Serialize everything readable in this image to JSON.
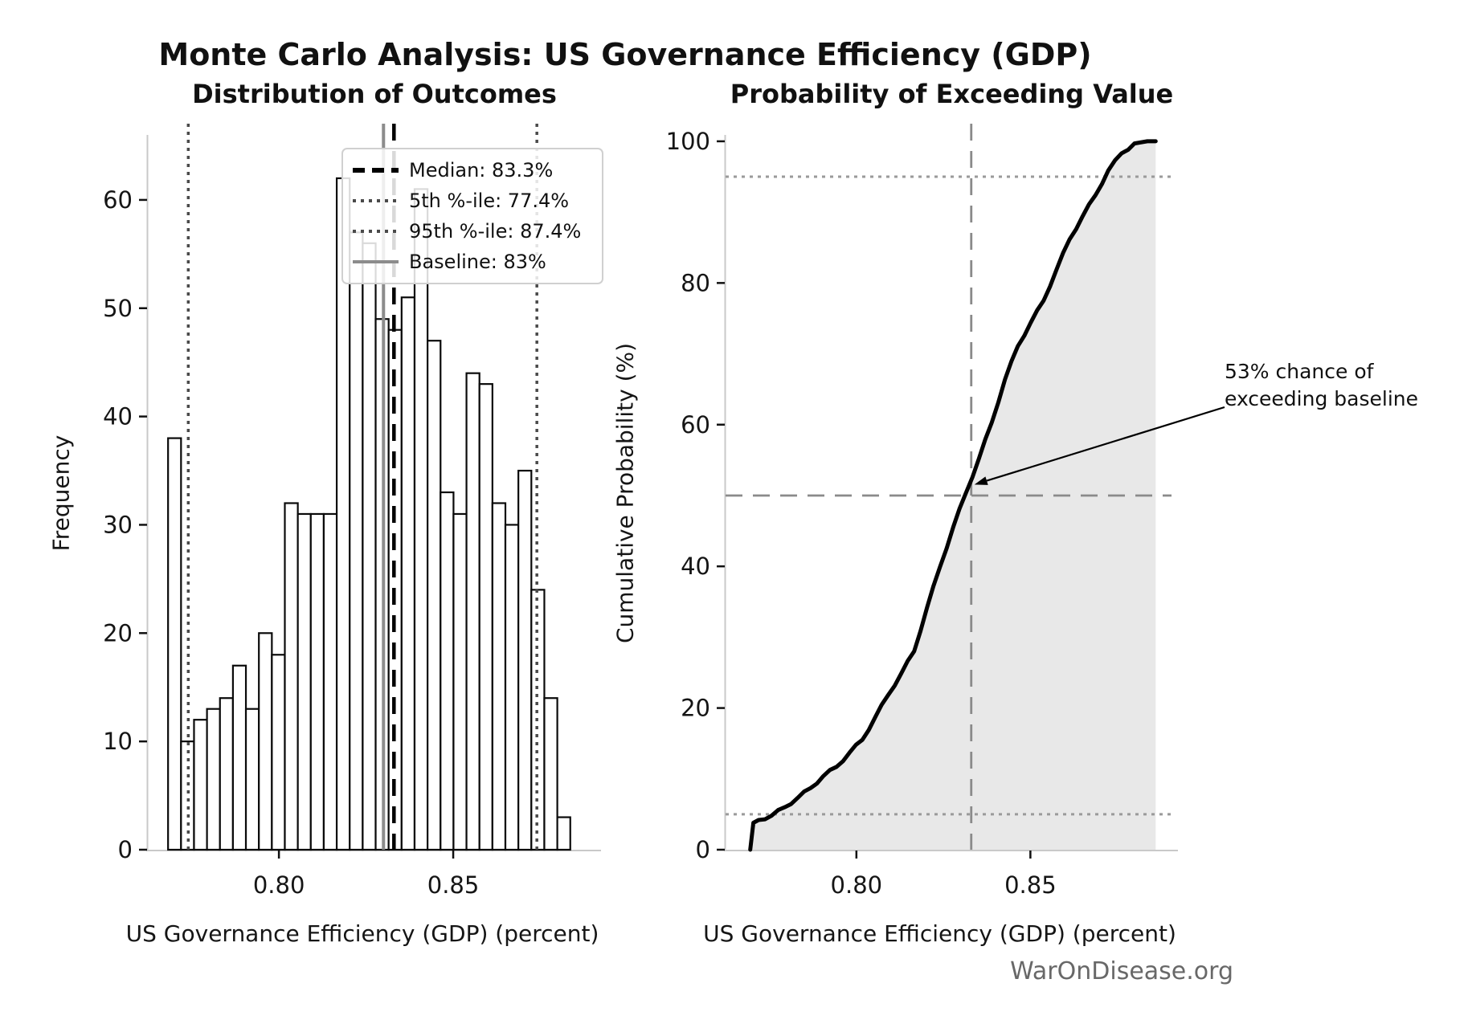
{
  "title": "Monte Carlo Analysis: US Governance Efficiency (GDP)",
  "watermark": "WarOnDisease.org",
  "chart_data": [
    {
      "type": "bar",
      "title": "Distribution of Outcomes",
      "xlabel": "US Governance Efficiency (GDP) (percent)",
      "ylabel": "Frequency",
      "bin_start": 0.7682,
      "bin_width": 0.003722,
      "values": [
        38,
        10,
        12,
        13,
        14,
        17,
        13,
        20,
        18,
        32,
        31,
        31,
        31,
        62,
        57,
        56,
        49,
        48,
        51,
        61,
        47,
        33,
        31,
        44,
        43,
        32,
        30,
        35,
        24,
        14,
        3
      ],
      "total_samples": 1000,
      "xlim": [
        0.7624,
        0.8924
      ],
      "ylim": [
        0,
        66
      ],
      "xticks": [
        0.8,
        0.85
      ],
      "xtick_labels": [
        "0.80",
        "0.85"
      ],
      "yticks": [
        0,
        10,
        20,
        30,
        40,
        50,
        60
      ],
      "ytick_labels": [
        "0",
        "10",
        "20",
        "30",
        "40",
        "50",
        "60"
      ],
      "bar_fill": "#ffffff",
      "bar_edge": "#0a0a0a",
      "vlines": [
        {
          "id": "median",
          "label": "Median: 83.3%",
          "x": 0.833,
          "style": "dashed",
          "color": "#000000",
          "width": 4.5
        },
        {
          "id": "percentile-5",
          "label": "5th %-ile: 77.4%",
          "x": 0.774,
          "style": "dotted",
          "color": "#4a4a4a",
          "width": 3.5
        },
        {
          "id": "percentile-95",
          "label": "95th %-ile: 87.4%",
          "x": 0.874,
          "style": "dotted",
          "color": "#4a4a4a",
          "width": 3.5
        },
        {
          "id": "baseline",
          "label": "Baseline: 83%",
          "x": 0.83,
          "style": "solid",
          "color": "#8c8c8c",
          "width": 4
        }
      ],
      "legend_position": "upper right",
      "grid": false
    },
    {
      "type": "line",
      "title": "Probability of Exceeding Value",
      "xlabel": "US Governance Efficiency (GDP) (percent)",
      "ylabel": "Cumulative Probability (%)",
      "xlim": [
        0.7624,
        0.8924
      ],
      "ylim": [
        0,
        100
      ],
      "xticks": [
        0.8,
        0.85
      ],
      "xtick_labels": [
        "0.80",
        "0.85"
      ],
      "yticks": [
        0,
        20,
        40,
        60,
        80,
        100
      ],
      "ytick_labels": [
        "0",
        "20",
        "40",
        "60",
        "80",
        "100"
      ],
      "line_color": "#000000",
      "fill_color": "#e8e8e8",
      "x": [
        0.7695,
        0.7704,
        0.7719,
        0.7756,
        0.7794,
        0.7831,
        0.7868,
        0.7905,
        0.7943,
        0.798,
        0.8017,
        0.8054,
        0.8091,
        0.8129,
        0.8166,
        0.8203,
        0.824,
        0.8278,
        0.8315,
        0.8352,
        0.8389,
        0.8427,
        0.8464,
        0.8501,
        0.8538,
        0.8575,
        0.8613,
        0.865,
        0.8687,
        0.8724,
        0.8762,
        0.8799,
        0.8836,
        0.886
      ],
      "y": [
        0,
        3.8,
        4.2,
        4.8,
        6.0,
        7.3,
        8.7,
        10.4,
        11.7,
        13.7,
        15.5,
        18.7,
        21.8,
        24.9,
        28.0,
        34.2,
        39.9,
        45.5,
        50.4,
        55.2,
        60.3,
        66.4,
        71.1,
        74.4,
        77.5,
        81.9,
        86.2,
        89.4,
        92.4,
        95.9,
        98.3,
        99.7,
        100.0,
        100.0
      ],
      "hlines": [
        {
          "id": "p95-line",
          "y": 95,
          "style": "dotted",
          "color": "#9a9a9a",
          "width": 3
        },
        {
          "id": "median-prob-line",
          "y": 50,
          "style": "dashed",
          "color": "#8a8a8a",
          "width": 2.8
        },
        {
          "id": "p5-line",
          "y": 5,
          "style": "dotted",
          "color": "#9a9a9a",
          "width": 3
        }
      ],
      "vlines": [
        {
          "id": "median-value-line",
          "x": 0.833,
          "style": "dashed",
          "color": "#8a8a8a",
          "width": 2.8
        }
      ],
      "annotation": {
        "line1": "53% chance of",
        "line2": "exceeding baseline",
        "arrow_to": {
          "x": 0.833,
          "p": 52
        }
      },
      "grid": false
    }
  ]
}
